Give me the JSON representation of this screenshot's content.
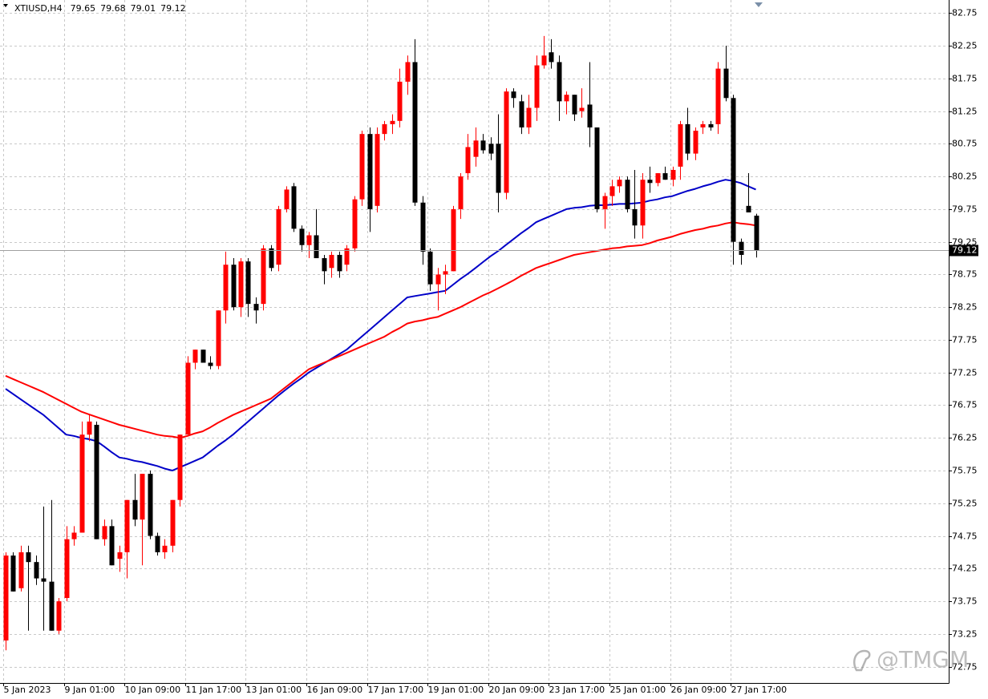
{
  "chart_data": {
    "type": "candlestick",
    "title": "XTIUSD,H4",
    "categories": [
      "5 Jan 2023",
      null,
      null,
      null,
      null,
      null,
      null,
      null,
      "9 Jan 01:00",
      null,
      null,
      null,
      null,
      null,
      null,
      null,
      "10 Jan 09:00",
      null,
      null,
      null,
      null,
      null,
      null,
      null,
      "11 Jan 17:00",
      null,
      null,
      null,
      null,
      null,
      null,
      null,
      "13 Jan 01:00",
      null,
      null,
      null,
      null,
      null,
      null,
      null,
      "16 Jan 09:00",
      null,
      null,
      null,
      null,
      null,
      null,
      null,
      "17 Jan 17:00",
      null,
      null,
      null,
      null,
      null,
      null,
      null,
      "19 Jan 01:00",
      null,
      null,
      null,
      null,
      null,
      null,
      null,
      "20 Jan 09:00",
      null,
      null,
      null,
      null,
      null,
      null,
      null,
      "23 Jan 17:00",
      null,
      null,
      null,
      null,
      null,
      null,
      null,
      "25 Jan 01:00",
      null,
      null,
      null,
      null,
      null,
      null,
      null,
      "26 Jan 09:00",
      null,
      null,
      null,
      null,
      null,
      null,
      null,
      "27 Jan 17:00",
      null,
      null,
      null
    ],
    "open": [
      73.15,
      74.45,
      73.95,
      74.5,
      74.35,
      74.1,
      74.05,
      73.3,
      73.8,
      74.7,
      74.8,
      76.3,
      76.45,
      74.7,
      74.9,
      74.4,
      74.5,
      75.3,
      75.0,
      75.7,
      74.75,
      74.5,
      74.6,
      75.3,
      76.3,
      77.4,
      77.6,
      77.4,
      77.35,
      78.2,
      78.9,
      78.25,
      78.95,
      78.3,
      78.3,
      79.15,
      78.9,
      79.75,
      80.1,
      79.45,
      79.2,
      79.35,
      79.0,
      78.85,
      79.05,
      78.9,
      79.15,
      79.9,
      80.9,
      79.8,
      80.9,
      81.05,
      81.1,
      81.7,
      82.0,
      79.85,
      79.1,
      78.6,
      78.75,
      78.8,
      79.75,
      80.3,
      80.55,
      80.8,
      80.75,
      80.75,
      80.0,
      81.55,
      81.4,
      81.0,
      81.3,
      81.95,
      82.15,
      82.0,
      81.4,
      81.5,
      81.25,
      81.35,
      81.0,
      79.75,
      79.95,
      80.1,
      80.2,
      79.75,
      79.5,
      80.2,
      80.15,
      80.3,
      80.2,
      80.4,
      81.05,
      80.6,
      81.0,
      81.05,
      81.05,
      81.9,
      81.45,
      79.25,
      79.8,
      79.65
    ],
    "high": [
      74.5,
      74.5,
      74.6,
      74.6,
      74.45,
      75.2,
      75.3,
      73.8,
      74.9,
      74.9,
      76.5,
      76.6,
      76.5,
      75.0,
      75.0,
      74.6,
      75.3,
      75.7,
      75.7,
      75.75,
      74.8,
      74.7,
      75.3,
      76.3,
      77.5,
      77.6,
      77.6,
      77.5,
      78.2,
      79.1,
      79.0,
      79.0,
      79.0,
      78.4,
      79.2,
      79.2,
      79.8,
      80.1,
      80.15,
      79.5,
      79.4,
      79.75,
      79.05,
      79.1,
      79.1,
      79.2,
      79.95,
      80.95,
      81.0,
      81.0,
      81.1,
      81.2,
      81.9,
      82.1,
      82.35,
      79.95,
      79.15,
      78.85,
      78.9,
      79.8,
      80.3,
      80.9,
      81.0,
      80.9,
      80.85,
      81.2,
      81.6,
      81.6,
      81.5,
      81.5,
      82.1,
      82.4,
      82.35,
      82.1,
      81.55,
      81.5,
      81.6,
      82.0,
      81.0,
      80.0,
      80.2,
      80.25,
      80.25,
      80.35,
      80.3,
      80.4,
      80.3,
      80.4,
      80.4,
      81.1,
      81.3,
      81.0,
      81.1,
      81.1,
      82.0,
      82.25,
      81.5,
      79.3,
      80.3,
      79.68
    ],
    "low": [
      73.0,
      73.9,
      73.9,
      73.3,
      74.0,
      73.3,
      73.3,
      73.25,
      73.75,
      74.6,
      74.8,
      76.2,
      74.7,
      74.6,
      74.3,
      74.2,
      74.1,
      74.9,
      74.3,
      74.7,
      74.45,
      74.4,
      74.5,
      75.2,
      76.3,
      77.3,
      77.4,
      77.3,
      77.3,
      78.0,
      78.2,
      78.1,
      78.1,
      78.0,
      78.2,
      78.8,
      78.8,
      79.7,
      79.4,
      79.1,
      79.0,
      79.0,
      78.6,
      78.7,
      78.7,
      78.8,
      79.1,
      79.8,
      79.4,
      79.7,
      80.8,
      80.9,
      81.0,
      81.5,
      79.8,
      78.9,
      78.5,
      78.2,
      78.45,
      78.8,
      79.6,
      80.2,
      80.4,
      80.6,
      80.5,
      79.7,
      79.9,
      81.3,
      80.9,
      80.9,
      81.1,
      81.9,
      81.9,
      81.1,
      81.2,
      81.1,
      81.15,
      80.7,
      79.7,
      79.45,
      79.8,
      80.0,
      79.7,
      79.3,
      79.3,
      80.0,
      80.1,
      80.2,
      80.1,
      80.2,
      80.5,
      80.5,
      80.9,
      80.95,
      80.9,
      81.4,
      78.9,
      78.9,
      79.7,
      79.01
    ],
    "close": [
      74.45,
      73.9,
      74.5,
      74.35,
      74.1,
      74.05,
      73.3,
      73.75,
      74.7,
      74.8,
      76.3,
      76.5,
      74.7,
      74.9,
      74.3,
      74.5,
      75.3,
      75.0,
      75.7,
      74.75,
      74.5,
      74.6,
      75.3,
      76.3,
      77.4,
      77.6,
      77.4,
      77.35,
      78.2,
      78.9,
      78.25,
      78.95,
      78.3,
      78.2,
      79.15,
      78.85,
      79.75,
      80.05,
      79.45,
      79.2,
      79.35,
      79.0,
      78.8,
      79.05,
      78.8,
      79.15,
      79.9,
      80.9,
      79.75,
      80.9,
      81.05,
      81.1,
      81.7,
      82.0,
      79.85,
      79.1,
      78.6,
      78.75,
      78.8,
      79.75,
      80.25,
      80.7,
      80.8,
      80.65,
      80.6,
      80.0,
      81.55,
      81.45,
      81.0,
      81.3,
      81.95,
      82.1,
      82.0,
      81.4,
      81.5,
      81.2,
      81.3,
      81.0,
      79.75,
      79.95,
      80.1,
      80.2,
      79.75,
      79.5,
      80.2,
      80.15,
      80.3,
      80.2,
      80.35,
      81.05,
      80.6,
      80.95,
      81.05,
      81.0,
      81.9,
      81.45,
      79.25,
      79.05,
      79.7,
      79.12
    ],
    "up_color": "#ff0000",
    "down_color": "#000000",
    "lines": [
      {
        "color": "#0000c8",
        "values": [
          77.0,
          76.92,
          76.84,
          76.76,
          76.68,
          76.6,
          76.5,
          76.4,
          76.3,
          76.28,
          76.25,
          76.23,
          76.2,
          76.12,
          76.03,
          75.95,
          75.93,
          75.9,
          75.88,
          75.85,
          75.82,
          75.78,
          75.75,
          75.8,
          75.85,
          75.9,
          75.95,
          76.04,
          76.13,
          76.21,
          76.3,
          76.4,
          76.5,
          76.6,
          76.7,
          76.8,
          76.9,
          76.99,
          77.08,
          77.16,
          77.25,
          77.32,
          77.39,
          77.46,
          77.53,
          77.6,
          77.7,
          77.8,
          77.9,
          78.0,
          78.1,
          78.2,
          78.3,
          78.4,
          78.42,
          78.44,
          78.46,
          78.48,
          78.5,
          78.59,
          78.68,
          78.76,
          78.85,
          78.94,
          79.03,
          79.11,
          79.2,
          79.29,
          79.38,
          79.46,
          79.55,
          79.6,
          79.65,
          79.7,
          79.75,
          79.77,
          79.78,
          79.8,
          79.81,
          79.81,
          79.82,
          79.83,
          79.83,
          79.84,
          79.85,
          79.88,
          79.9,
          79.93,
          79.95,
          79.99,
          80.03,
          80.06,
          80.1,
          80.13,
          80.17,
          80.2,
          80.18,
          80.15,
          80.1,
          80.05
        ]
      },
      {
        "color": "#ff0000",
        "values": [
          77.2,
          77.15,
          77.1,
          77.05,
          77.0,
          76.95,
          76.89,
          76.83,
          76.77,
          76.71,
          76.65,
          76.61,
          76.57,
          76.53,
          76.49,
          76.45,
          76.42,
          76.39,
          76.36,
          76.33,
          76.3,
          76.28,
          76.27,
          76.25,
          76.28,
          76.32,
          76.35,
          76.41,
          76.48,
          76.54,
          76.6,
          76.65,
          76.7,
          76.75,
          76.8,
          76.85,
          76.94,
          77.03,
          77.12,
          77.21,
          77.3,
          77.35,
          77.4,
          77.45,
          77.5,
          77.55,
          77.6,
          77.65,
          77.7,
          77.75,
          77.8,
          77.87,
          77.93,
          78.0,
          78.03,
          78.05,
          78.08,
          78.1,
          78.15,
          78.2,
          78.25,
          78.31,
          78.37,
          78.43,
          78.48,
          78.54,
          78.6,
          78.66,
          78.73,
          78.79,
          78.85,
          78.89,
          78.93,
          78.97,
          79.01,
          79.05,
          79.07,
          79.09,
          79.11,
          79.13,
          79.15,
          79.16,
          79.18,
          79.19,
          79.2,
          79.23,
          79.27,
          79.3,
          79.33,
          79.37,
          79.4,
          79.43,
          79.45,
          79.48,
          79.5,
          79.53,
          79.55,
          79.53,
          79.52,
          79.5
        ]
      }
    ],
    "ylim": [
      72.5,
      82.95
    ],
    "yticks": [
      72.75,
      73.25,
      73.75,
      74.25,
      74.75,
      75.25,
      75.75,
      76.25,
      76.75,
      77.25,
      77.75,
      78.25,
      78.75,
      79.25,
      79.75,
      80.25,
      80.75,
      81.25,
      81.75,
      82.25,
      82.75
    ],
    "grid": true,
    "watermark": "@TMGM"
  }
}
